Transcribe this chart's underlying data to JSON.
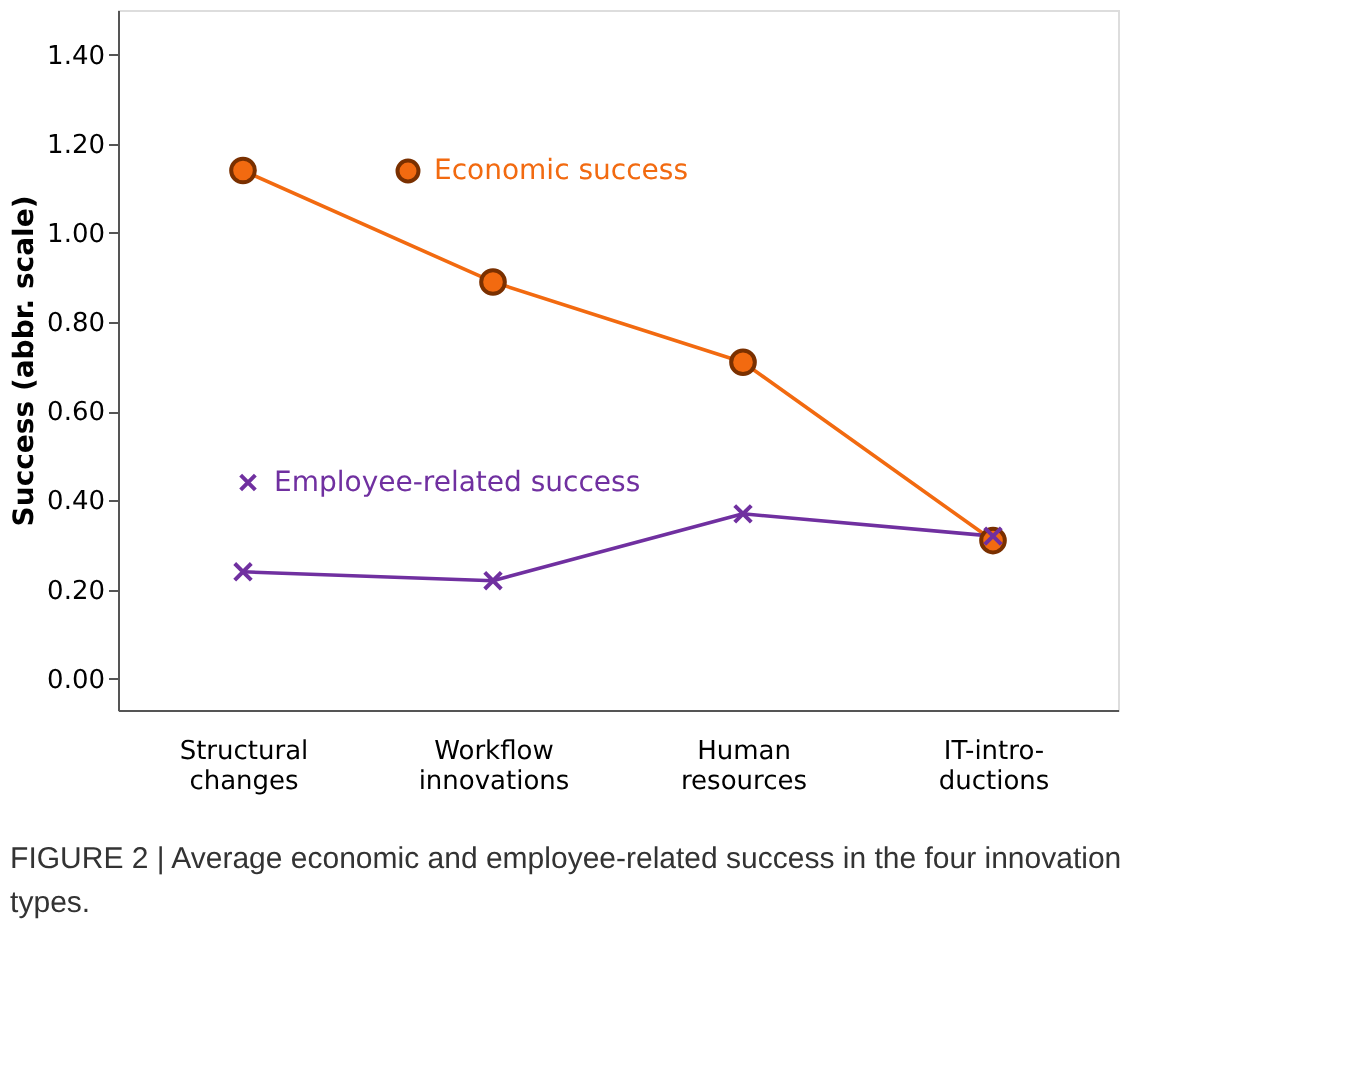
{
  "chart_data": {
    "type": "line",
    "categories": [
      "Structural changes",
      "Workflow innovations",
      "Human resources",
      "IT-intro-ductions"
    ],
    "ylabel": "Success (abbr. scale)",
    "ylim": [
      -0.07,
      1.5
    ],
    "yticks": [
      {
        "value": 0,
        "label": "0.00"
      },
      {
        "value": 0.2,
        "label": "0.20"
      },
      {
        "value": 0.4,
        "label": "0.40"
      },
      {
        "value": 0.6,
        "label": "0.60"
      },
      {
        "value": 0.8,
        "label": "0.80"
      },
      {
        "value": 1.0,
        "label": "1.00"
      },
      {
        "value": 1.2,
        "label": "1.20"
      },
      {
        "value": 1.4,
        "label": "1.40"
      }
    ],
    "series": [
      {
        "name": "Economic success",
        "color": "#f26a10",
        "marker": "circle",
        "values": [
          1.14,
          0.89,
          0.71,
          0.31
        ]
      },
      {
        "name": "Employee-related success",
        "color": "#7030a0",
        "marker": "cross",
        "values": [
          0.24,
          0.22,
          0.37,
          0.32
        ]
      }
    ],
    "grid": false,
    "legend": "top left",
    "annotations": [
      "FIGURE 2 | Average economic and employee-related success in the four innovation types."
    ]
  }
}
